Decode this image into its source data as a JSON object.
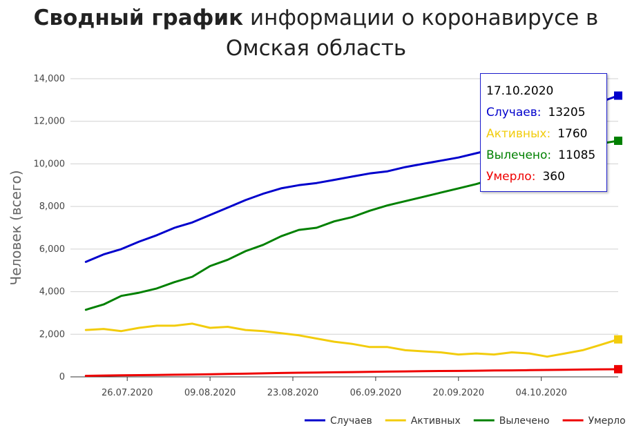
{
  "title": {
    "bold": "Сводный график",
    "rest": " информации о коронавирусе в Омская область"
  },
  "chart_data": {
    "type": "line",
    "ylabel": "Человек (всего)",
    "xlabel": "",
    "ylim": [
      0,
      14000
    ],
    "yticks": [
      "0",
      "2,000",
      "4,000",
      "6,000",
      "8,000",
      "10,000",
      "12,000",
      "14,000"
    ],
    "xticks": [
      "26.07.2020",
      "09.08.2020",
      "23.08.2020",
      "06.09.2020",
      "20.09.2020",
      "04.10.2020"
    ],
    "x_range": [
      "2020-07-19",
      "2020-10-17"
    ],
    "grid": "horizontal",
    "legend_position": "bottom-right",
    "x": [
      "2020-07-19",
      "2020-07-22",
      "2020-07-25",
      "2020-07-28",
      "2020-07-31",
      "2020-08-03",
      "2020-08-06",
      "2020-08-09",
      "2020-08-12",
      "2020-08-15",
      "2020-08-18",
      "2020-08-21",
      "2020-08-24",
      "2020-08-27",
      "2020-08-30",
      "2020-09-02",
      "2020-09-05",
      "2020-09-08",
      "2020-09-11",
      "2020-09-14",
      "2020-09-17",
      "2020-09-20",
      "2020-09-23",
      "2020-09-26",
      "2020-09-29",
      "2020-10-02",
      "2020-10-05",
      "2020-10-08",
      "2020-10-11",
      "2020-10-14",
      "2020-10-17"
    ],
    "series": [
      {
        "name": "Случаев",
        "color": "#0000cc",
        "values": [
          5400,
          5750,
          6000,
          6350,
          6650,
          7000,
          7250,
          7600,
          7950,
          8300,
          8600,
          8850,
          9000,
          9100,
          9250,
          9400,
          9550,
          9650,
          9850,
          10000,
          10150,
          10300,
          10500,
          10700,
          11000,
          11350,
          11700,
          12100,
          12550,
          12900,
          13205
        ]
      },
      {
        "name": "Активных",
        "color": "#f2cc0c",
        "values": [
          2200,
          2250,
          2150,
          2300,
          2400,
          2400,
          2500,
          2300,
          2350,
          2200,
          2150,
          2050,
          1950,
          1800,
          1650,
          1550,
          1400,
          1400,
          1250,
          1200,
          1150,
          1050,
          1100,
          1050,
          1150,
          1100,
          950,
          1100,
          1250,
          1500,
          1760
        ]
      },
      {
        "name": "Вылечено",
        "color": "#008000",
        "values": [
          3150,
          3400,
          3800,
          3950,
          4150,
          4450,
          4700,
          5200,
          5500,
          5900,
          6200,
          6600,
          6900,
          7000,
          7300,
          7500,
          7800,
          8050,
          8250,
          8450,
          8650,
          8850,
          9050,
          9300,
          9500,
          9900,
          10300,
          10700,
          10850,
          10950,
          11085
        ]
      },
      {
        "name": "Умерло",
        "color": "#ee0000",
        "values": [
          50,
          60,
          70,
          80,
          90,
          100,
          110,
          120,
          135,
          150,
          165,
          180,
          195,
          205,
          215,
          225,
          235,
          245,
          255,
          265,
          275,
          280,
          290,
          300,
          305,
          315,
          325,
          335,
          345,
          352,
          360
        ]
      }
    ]
  },
  "tooltip": {
    "date": "17.10.2020",
    "rows": [
      {
        "label": "Случаев:",
        "value": "13205",
        "color": "#0000cc"
      },
      {
        "label": "Активных:",
        "value": "1760",
        "color": "#f2cc0c"
      },
      {
        "label": "Вылечено:",
        "value": "11085",
        "color": "#008000"
      },
      {
        "label": "Умерло:",
        "value": "360",
        "color": "#ee0000"
      }
    ]
  },
  "legend": [
    "Случаев",
    "Активных",
    "Вылечено",
    "Умерло"
  ],
  "colors": {
    "grid": "#d0d0d0",
    "axis": "#333333",
    "tooltip_border": "#1a1acc"
  }
}
